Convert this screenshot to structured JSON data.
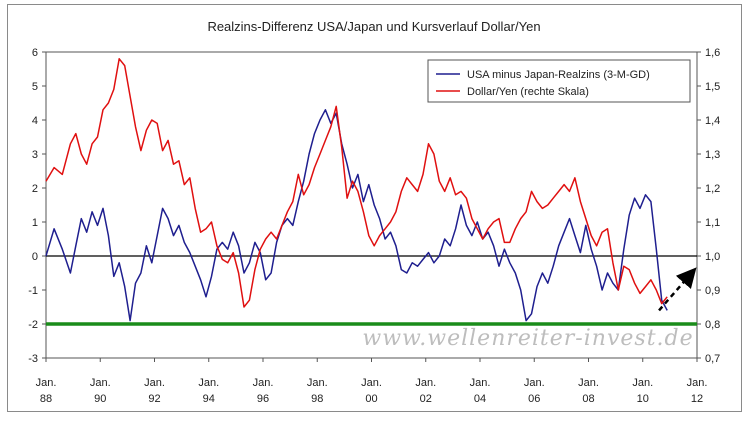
{
  "chart_data": {
    "type": "line",
    "title": "Realzins-Differenz USA/Japan und Kursverlauf Dollar/Yen",
    "watermark": "www.wellenreiter-invest.de",
    "x_ticks": [
      {
        "year": 1988,
        "top": "Jan.",
        "bottom": "88"
      },
      {
        "year": 1990,
        "top": "Jan.",
        "bottom": "90"
      },
      {
        "year": 1992,
        "top": "Jan.",
        "bottom": "92"
      },
      {
        "year": 1994,
        "top": "Jan.",
        "bottom": "94"
      },
      {
        "year": 1996,
        "top": "Jan.",
        "bottom": "96"
      },
      {
        "year": 1998,
        "top": "Jan.",
        "bottom": "98"
      },
      {
        "year": 2000,
        "top": "Jan.",
        "bottom": "00"
      },
      {
        "year": 2002,
        "top": "Jan.",
        "bottom": "02"
      },
      {
        "year": 2004,
        "top": "Jan.",
        "bottom": "04"
      },
      {
        "year": 2006,
        "top": "Jan.",
        "bottom": "06"
      },
      {
        "year": 2008,
        "top": "Jan.",
        "bottom": "08"
      },
      {
        "year": 2010,
        "top": "Jan.",
        "bottom": "10"
      },
      {
        "year": 2012,
        "top": "Jan.",
        "bottom": "12"
      }
    ],
    "xlim": [
      1988,
      2012
    ],
    "ylim_left": [
      -3,
      6
    ],
    "yticks_left": [
      "6",
      "5",
      "4",
      "3",
      "2",
      "1",
      "0",
      "-1",
      "-2",
      "-3"
    ],
    "ylim_right": [
      0.7,
      1.6
    ],
    "yticks_right": [
      "1,6",
      "1,5",
      "1,4",
      "1,3",
      "1,2",
      "1,1",
      "1,0",
      "0,9",
      "0,8",
      "0,7"
    ],
    "zero_line": 0,
    "support_line": {
      "value": -2,
      "color": "#1a8c1a"
    },
    "legend_position": "top-right",
    "series": [
      {
        "name": "USA minus Japan-Realzins (3-M-GD)",
        "axis": "left",
        "color": "#1f1f8f",
        "points": [
          [
            1988.0,
            0.0
          ],
          [
            1988.3,
            0.8
          ],
          [
            1988.6,
            0.2
          ],
          [
            1988.9,
            -0.5
          ],
          [
            1989.1,
            0.3
          ],
          [
            1989.3,
            1.1
          ],
          [
            1989.5,
            0.7
          ],
          [
            1989.7,
            1.3
          ],
          [
            1989.9,
            0.9
          ],
          [
            1990.1,
            1.4
          ],
          [
            1990.3,
            0.6
          ],
          [
            1990.5,
            -0.6
          ],
          [
            1990.7,
            -0.2
          ],
          [
            1990.9,
            -0.9
          ],
          [
            1991.1,
            -1.9
          ],
          [
            1991.3,
            -0.8
          ],
          [
            1991.5,
            -0.5
          ],
          [
            1991.7,
            0.3
          ],
          [
            1991.9,
            -0.2
          ],
          [
            1992.1,
            0.6
          ],
          [
            1992.3,
            1.4
          ],
          [
            1992.5,
            1.1
          ],
          [
            1992.7,
            0.6
          ],
          [
            1992.9,
            0.9
          ],
          [
            1993.1,
            0.4
          ],
          [
            1993.3,
            0.1
          ],
          [
            1993.5,
            -0.3
          ],
          [
            1993.7,
            -0.7
          ],
          [
            1993.9,
            -1.2
          ],
          [
            1994.1,
            -0.6
          ],
          [
            1994.3,
            0.2
          ],
          [
            1994.5,
            0.4
          ],
          [
            1994.7,
            0.2
          ],
          [
            1994.9,
            0.7
          ],
          [
            1995.1,
            0.3
          ],
          [
            1995.3,
            -0.5
          ],
          [
            1995.5,
            -0.2
          ],
          [
            1995.7,
            0.4
          ],
          [
            1995.9,
            0.1
          ],
          [
            1996.1,
            -0.7
          ],
          [
            1996.3,
            -0.5
          ],
          [
            1996.5,
            0.4
          ],
          [
            1996.7,
            0.9
          ],
          [
            1996.9,
            1.1
          ],
          [
            1997.1,
            0.9
          ],
          [
            1997.3,
            1.6
          ],
          [
            1997.5,
            2.2
          ],
          [
            1997.7,
            3.0
          ],
          [
            1997.9,
            3.6
          ],
          [
            1998.1,
            4.0
          ],
          [
            1998.3,
            4.3
          ],
          [
            1998.5,
            3.9
          ],
          [
            1998.7,
            4.2
          ],
          [
            1998.9,
            3.3
          ],
          [
            1999.1,
            2.7
          ],
          [
            1999.3,
            2.0
          ],
          [
            1999.5,
            2.4
          ],
          [
            1999.7,
            1.6
          ],
          [
            1999.9,
            2.1
          ],
          [
            2000.1,
            1.5
          ],
          [
            2000.3,
            1.1
          ],
          [
            2000.5,
            0.5
          ],
          [
            2000.7,
            0.7
          ],
          [
            2000.9,
            0.3
          ],
          [
            2001.1,
            -0.4
          ],
          [
            2001.3,
            -0.5
          ],
          [
            2001.5,
            -0.2
          ],
          [
            2001.7,
            -0.3
          ],
          [
            2001.9,
            -0.1
          ],
          [
            2002.1,
            0.1
          ],
          [
            2002.3,
            -0.2
          ],
          [
            2002.5,
            0.0
          ],
          [
            2002.7,
            0.5
          ],
          [
            2002.9,
            0.3
          ],
          [
            2003.1,
            0.8
          ],
          [
            2003.3,
            1.5
          ],
          [
            2003.5,
            0.9
          ],
          [
            2003.7,
            0.6
          ],
          [
            2003.9,
            1.0
          ],
          [
            2004.1,
            0.5
          ],
          [
            2004.3,
            0.7
          ],
          [
            2004.5,
            0.3
          ],
          [
            2004.7,
            -0.3
          ],
          [
            2004.9,
            0.2
          ],
          [
            2005.1,
            -0.2
          ],
          [
            2005.3,
            -0.5
          ],
          [
            2005.5,
            -1.0
          ],
          [
            2005.7,
            -1.9
          ],
          [
            2005.9,
            -1.7
          ],
          [
            2006.1,
            -0.9
          ],
          [
            2006.3,
            -0.5
          ],
          [
            2006.5,
            -0.8
          ],
          [
            2006.7,
            -0.3
          ],
          [
            2006.9,
            0.3
          ],
          [
            2007.1,
            0.7
          ],
          [
            2007.3,
            1.1
          ],
          [
            2007.5,
            0.6
          ],
          [
            2007.7,
            0.1
          ],
          [
            2007.9,
            0.9
          ],
          [
            2008.1,
            0.2
          ],
          [
            2008.3,
            -0.3
          ],
          [
            2008.5,
            -1.0
          ],
          [
            2008.7,
            -0.5
          ],
          [
            2008.9,
            -0.8
          ],
          [
            2009.1,
            -1.0
          ],
          [
            2009.3,
            0.2
          ],
          [
            2009.5,
            1.2
          ],
          [
            2009.7,
            1.7
          ],
          [
            2009.9,
            1.4
          ],
          [
            2010.1,
            1.8
          ],
          [
            2010.3,
            1.6
          ],
          [
            2010.5,
            0.2
          ],
          [
            2010.7,
            -1.3
          ],
          [
            2010.9,
            -1.6
          ]
        ]
      },
      {
        "name": "Dollar/Yen (rechte Skala)",
        "axis": "right",
        "color": "#e01010",
        "points": [
          [
            1988.0,
            1.22
          ],
          [
            1988.3,
            1.26
          ],
          [
            1988.6,
            1.24
          ],
          [
            1988.9,
            1.33
          ],
          [
            1989.1,
            1.36
          ],
          [
            1989.3,
            1.3
          ],
          [
            1989.5,
            1.27
          ],
          [
            1989.7,
            1.33
          ],
          [
            1989.9,
            1.35
          ],
          [
            1990.1,
            1.43
          ],
          [
            1990.3,
            1.45
          ],
          [
            1990.5,
            1.49
          ],
          [
            1990.7,
            1.58
          ],
          [
            1990.9,
            1.56
          ],
          [
            1991.1,
            1.47
          ],
          [
            1991.3,
            1.38
          ],
          [
            1991.5,
            1.31
          ],
          [
            1991.7,
            1.37
          ],
          [
            1991.9,
            1.4
          ],
          [
            1992.1,
            1.39
          ],
          [
            1992.3,
            1.31
          ],
          [
            1992.5,
            1.34
          ],
          [
            1992.7,
            1.27
          ],
          [
            1992.9,
            1.28
          ],
          [
            1993.1,
            1.21
          ],
          [
            1993.3,
            1.23
          ],
          [
            1993.5,
            1.14
          ],
          [
            1993.7,
            1.07
          ],
          [
            1993.9,
            1.08
          ],
          [
            1994.1,
            1.1
          ],
          [
            1994.3,
            1.03
          ],
          [
            1994.5,
            0.99
          ],
          [
            1994.7,
            0.98
          ],
          [
            1994.9,
            1.01
          ],
          [
            1995.1,
            0.95
          ],
          [
            1995.3,
            0.85
          ],
          [
            1995.5,
            0.87
          ],
          [
            1995.7,
            0.96
          ],
          [
            1995.9,
            1.02
          ],
          [
            1996.1,
            1.05
          ],
          [
            1996.3,
            1.07
          ],
          [
            1996.5,
            1.05
          ],
          [
            1996.7,
            1.09
          ],
          [
            1996.9,
            1.13
          ],
          [
            1997.1,
            1.16
          ],
          [
            1997.3,
            1.24
          ],
          [
            1997.5,
            1.18
          ],
          [
            1997.7,
            1.21
          ],
          [
            1997.9,
            1.26
          ],
          [
            1998.1,
            1.3
          ],
          [
            1998.3,
            1.34
          ],
          [
            1998.5,
            1.38
          ],
          [
            1998.7,
            1.44
          ],
          [
            1998.9,
            1.32
          ],
          [
            1999.1,
            1.17
          ],
          [
            1999.3,
            1.22
          ],
          [
            1999.5,
            1.19
          ],
          [
            1999.7,
            1.13
          ],
          [
            1999.9,
            1.06
          ],
          [
            2000.1,
            1.03
          ],
          [
            2000.3,
            1.06
          ],
          [
            2000.5,
            1.08
          ],
          [
            2000.7,
            1.1
          ],
          [
            2000.9,
            1.13
          ],
          [
            2001.1,
            1.19
          ],
          [
            2001.3,
            1.23
          ],
          [
            2001.5,
            1.21
          ],
          [
            2001.7,
            1.19
          ],
          [
            2001.9,
            1.24
          ],
          [
            2002.1,
            1.33
          ],
          [
            2002.3,
            1.3
          ],
          [
            2002.5,
            1.22
          ],
          [
            2002.7,
            1.19
          ],
          [
            2002.9,
            1.23
          ],
          [
            2003.1,
            1.18
          ],
          [
            2003.3,
            1.19
          ],
          [
            2003.5,
            1.17
          ],
          [
            2003.7,
            1.11
          ],
          [
            2003.9,
            1.08
          ],
          [
            2004.1,
            1.05
          ],
          [
            2004.3,
            1.08
          ],
          [
            2004.5,
            1.1
          ],
          [
            2004.7,
            1.11
          ],
          [
            2004.9,
            1.04
          ],
          [
            2005.1,
            1.04
          ],
          [
            2005.3,
            1.08
          ],
          [
            2005.5,
            1.11
          ],
          [
            2005.7,
            1.13
          ],
          [
            2005.9,
            1.19
          ],
          [
            2006.1,
            1.16
          ],
          [
            2006.3,
            1.14
          ],
          [
            2006.5,
            1.15
          ],
          [
            2006.7,
            1.17
          ],
          [
            2006.9,
            1.19
          ],
          [
            2007.1,
            1.21
          ],
          [
            2007.3,
            1.19
          ],
          [
            2007.5,
            1.23
          ],
          [
            2007.7,
            1.16
          ],
          [
            2007.9,
            1.11
          ],
          [
            2008.1,
            1.06
          ],
          [
            2008.3,
            1.03
          ],
          [
            2008.5,
            1.07
          ],
          [
            2008.7,
            1.08
          ],
          [
            2008.9,
            0.98
          ],
          [
            2009.1,
            0.9
          ],
          [
            2009.3,
            0.97
          ],
          [
            2009.5,
            0.96
          ],
          [
            2009.7,
            0.92
          ],
          [
            2009.9,
            0.89
          ],
          [
            2010.1,
            0.91
          ],
          [
            2010.3,
            0.93
          ],
          [
            2010.5,
            0.9
          ],
          [
            2010.7,
            0.86
          ],
          [
            2010.9,
            0.88
          ]
        ]
      }
    ],
    "annotation_arrow": {
      "from": [
        2010.6,
        -1.6
      ],
      "to": [
        2011.8,
        -0.5
      ],
      "color": "#000000",
      "style": "dashed"
    }
  }
}
